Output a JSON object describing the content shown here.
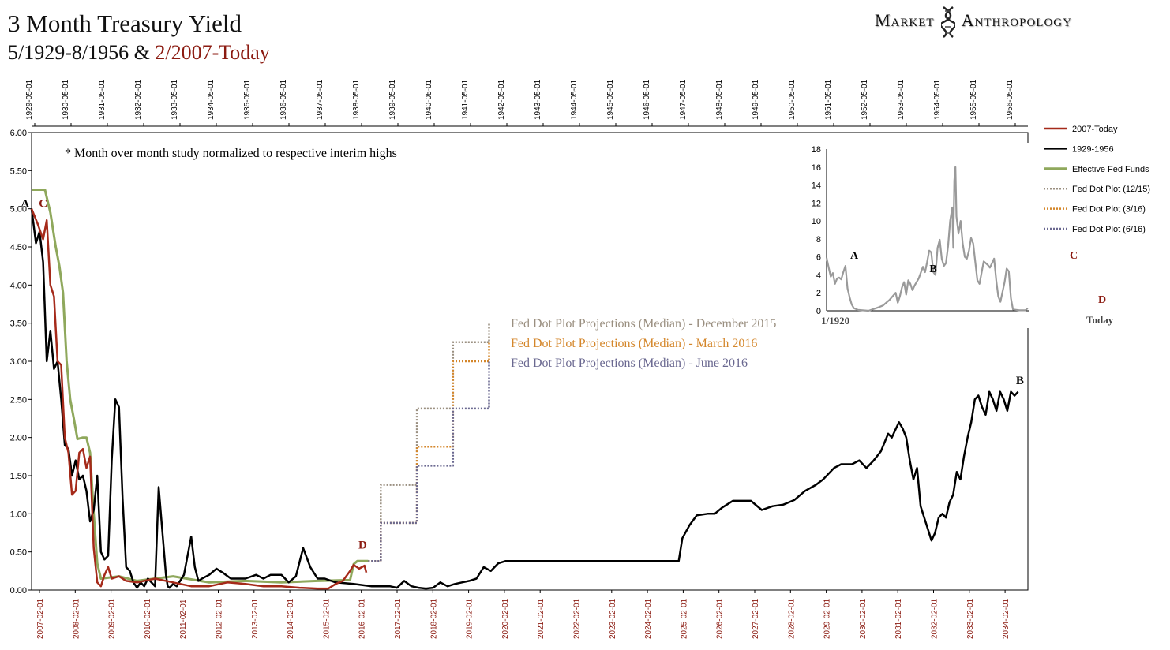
{
  "title": "3 Month Treasury Yield",
  "subtitle_part1": "5/1929-8/1956 &",
  "subtitle_part2": "2/2007-Today",
  "logo_left": "Market",
  "logo_right": "Anthropology",
  "colors": {
    "s2007": "#a52a1a",
    "s1929": "#000000",
    "fedfunds": "#8fa85c",
    "dot1215": "#9a8f80",
    "dot316": "#d4862a",
    "dot616": "#6a6890",
    "inset": "#9a9a9a"
  },
  "chart_data": {
    "type": "line",
    "title": "3 Month Treasury Yield",
    "note": "* Month over month study normalized to respective interim highs",
    "ylim": [
      0,
      6
    ],
    "y_ticks": [
      "0.00",
      "0.50",
      "1.00",
      "1.50",
      "2.00",
      "2.50",
      "3.00",
      "3.50",
      "4.00",
      "4.50",
      "5.00",
      "5.50",
      "6.00"
    ],
    "x_bottom_ticks": [
      "2007-02-01",
      "2008-02-01",
      "2009-02-01",
      "2010-02-01",
      "2011-02-01",
      "2012-02-01",
      "2013-02-01",
      "2014-02-01",
      "2015-02-01",
      "2016-02-01",
      "2017-02-01",
      "2018-02-01",
      "2019-02-01",
      "2020-02-01",
      "2021-02-01",
      "2022-02-01",
      "2023-02-01",
      "2024-02-01",
      "2025-02-01",
      "2026-02-01",
      "2027-02-01",
      "2028-02-01",
      "2029-02-01",
      "2030-02-01",
      "2031-02-01",
      "2032-02-01",
      "2033-02-01",
      "2034-02-01"
    ],
    "x_top_ticks": [
      "1929-05-01",
      "1930-05-01",
      "1931-05-01",
      "1932-05-01",
      "1933-05-01",
      "1934-05-01",
      "1935-05-01",
      "1936-05-01",
      "1937-05-01",
      "1938-05-01",
      "1939-05-01",
      "1940-05-01",
      "1941-05-01",
      "1942-05-01",
      "1943-05-01",
      "1944-05-01",
      "1945-05-01",
      "1946-05-01",
      "1947-05-01",
      "1948-05-01",
      "1949-05-01",
      "1950-05-01",
      "1951-05-01",
      "1952-05-01",
      "1953-05-01",
      "1954-05-01",
      "1955-05-01",
      "1956-05-01"
    ],
    "legend": [
      "2007-Today",
      "1929-1956",
      "Effective Fed Funds",
      "Fed Dot Plot (12/15)",
      "Fed Dot Plot (3/16)",
      "Fed Dot Plot (6/16)"
    ],
    "legend_position": "top-right",
    "series": [
      {
        "name": "2007-Today",
        "x": [
          2007.08,
          2007.25,
          2007.4,
          2007.5,
          2007.6,
          2007.7,
          2007.8,
          2007.9,
          2008.0,
          2008.1,
          2008.2,
          2008.3,
          2008.4,
          2008.5,
          2008.6,
          2008.7,
          2008.8,
          2008.9,
          2009.0,
          2009.1,
          2009.2,
          2009.3,
          2009.5,
          2009.7,
          2010.0,
          2010.5,
          2011.0,
          2011.5,
          2012.0,
          2012.5,
          2013.0,
          2013.5,
          2014.0,
          2014.5,
          2015.0,
          2015.3,
          2015.5,
          2015.7,
          2015.9,
          2016.0,
          2016.15,
          2016.3,
          2016.35
        ],
        "y": [
          5.0,
          4.8,
          4.6,
          4.85,
          4.0,
          3.85,
          3.0,
          2.95,
          2.0,
          1.8,
          1.25,
          1.3,
          1.8,
          1.85,
          1.6,
          1.75,
          0.55,
          0.1,
          0.05,
          0.2,
          0.3,
          0.15,
          0.18,
          0.12,
          0.1,
          0.15,
          0.1,
          0.05,
          0.05,
          0.1,
          0.08,
          0.05,
          0.05,
          0.03,
          0.02,
          0.02,
          0.08,
          0.12,
          0.25,
          0.33,
          0.28,
          0.32,
          0.23
        ]
      },
      {
        "name": "1929-1956",
        "x": [
          2007.08,
          2007.2,
          2007.3,
          2007.4,
          2007.5,
          2007.6,
          2007.7,
          2007.8,
          2007.9,
          2008.0,
          2008.1,
          2008.2,
          2008.3,
          2008.4,
          2008.5,
          2008.6,
          2008.7,
          2008.8,
          2008.9,
          2009.0,
          2009.1,
          2009.2,
          2009.3,
          2009.4,
          2009.5,
          2009.6,
          2009.7,
          2009.8,
          2009.9,
          2010.0,
          2010.1,
          2010.2,
          2010.3,
          2010.5,
          2010.6,
          2010.8,
          2010.85,
          2010.9,
          2011.0,
          2011.1,
          2011.3,
          2011.5,
          2011.6,
          2011.7,
          2011.8,
          2012.0,
          2012.2,
          2012.4,
          2012.6,
          2013.0,
          2013.3,
          2013.5,
          2013.7,
          2014.0,
          2014.2,
          2014.4,
          2014.6,
          2014.8,
          2015.0,
          2015.2,
          2015.5,
          2016.0,
          2016.5,
          2017.0,
          2017.2,
          2017.4,
          2017.6,
          2017.8,
          2018.0,
          2018.2,
          2018.4,
          2018.6,
          2018.8,
          2019.0,
          2019.2,
          2019.4,
          2019.6,
          2019.8,
          2020.0,
          2020.2,
          2020.5,
          2021.0,
          2022.0,
          2023.0,
          2024.0,
          2025.0,
          2025.1,
          2025.3,
          2025.5,
          2025.8,
          2026.0,
          2026.2,
          2026.5,
          2026.8,
          2027.0,
          2027.3,
          2027.6,
          2027.9,
          2028.2,
          2028.5,
          2028.8,
          2029.0,
          2029.3,
          2029.5,
          2029.8,
          2030.0,
          2030.2,
          2030.4,
          2030.6,
          2030.8,
          2030.9,
          2031.0,
          2031.1,
          2031.2,
          2031.3,
          2031.4,
          2031.5,
          2031.6,
          2031.7,
          2031.8,
          2031.9,
          2032.0,
          2032.1,
          2032.2,
          2032.3,
          2032.4,
          2032.5,
          2032.6,
          2032.7,
          2032.8,
          2032.9,
          2033.0,
          2033.1,
          2033.2,
          2033.3,
          2033.4,
          2033.5,
          2033.6,
          2033.7,
          2033.8,
          2033.9,
          2034.0,
          2034.1,
          2034.2,
          2034.3,
          2034.4
        ],
        "y": [
          5.0,
          4.55,
          4.7,
          4.3,
          3.0,
          3.4,
          2.9,
          3.0,
          2.5,
          1.9,
          1.85,
          1.5,
          1.7,
          1.45,
          1.5,
          1.3,
          0.9,
          1.05,
          1.5,
          0.5,
          0.4,
          0.45,
          1.7,
          2.5,
          2.4,
          1.2,
          0.3,
          0.25,
          0.1,
          0.03,
          0.1,
          0.05,
          0.15,
          0.05,
          1.35,
          0.2,
          0.05,
          0.03,
          0.08,
          0.05,
          0.2,
          0.7,
          0.3,
          0.12,
          0.15,
          0.2,
          0.28,
          0.22,
          0.15,
          0.15,
          0.2,
          0.15,
          0.2,
          0.2,
          0.1,
          0.18,
          0.55,
          0.3,
          0.15,
          0.15,
          0.1,
          0.08,
          0.05,
          0.05,
          0.03,
          0.12,
          0.05,
          0.03,
          0.02,
          0.03,
          0.1,
          0.05,
          0.08,
          0.1,
          0.12,
          0.15,
          0.3,
          0.25,
          0.35,
          0.38,
          0.38,
          0.38,
          0.38,
          0.38,
          0.38,
          0.38,
          0.68,
          0.85,
          0.98,
          1.0,
          1.0,
          1.08,
          1.17,
          1.17,
          1.17,
          1.05,
          1.1,
          1.12,
          1.18,
          1.3,
          1.38,
          1.45,
          1.6,
          1.65,
          1.65,
          1.7,
          1.6,
          1.7,
          1.82,
          2.05,
          2.0,
          2.1,
          2.2,
          2.12,
          2.0,
          1.7,
          1.45,
          1.6,
          1.1,
          0.95,
          0.8,
          0.65,
          0.75,
          0.95,
          1.0,
          0.95,
          1.15,
          1.25,
          1.55,
          1.45,
          1.75,
          2.0,
          2.2,
          2.5,
          2.55,
          2.4,
          2.3,
          2.6,
          2.5,
          2.35,
          2.6,
          2.5,
          2.35,
          2.6,
          2.55,
          2.6
        ]
      },
      {
        "name": "Effective Fed Funds",
        "x": [
          2007.08,
          2007.3,
          2007.45,
          2007.6,
          2007.75,
          2007.85,
          2007.95,
          2008.05,
          2008.15,
          2008.25,
          2008.35,
          2008.5,
          2008.6,
          2008.7,
          2008.8,
          2008.9,
          2009.0,
          2009.5,
          2010.0,
          2011.0,
          2012.0,
          2013.0,
          2014.0,
          2015.0,
          2015.9,
          2016.0,
          2016.1,
          2016.4
        ],
        "y": [
          5.25,
          5.25,
          5.25,
          4.95,
          4.5,
          4.25,
          3.9,
          3.0,
          2.5,
          2.25,
          1.98,
          2.0,
          2.0,
          1.8,
          1.0,
          0.35,
          0.15,
          0.18,
          0.12,
          0.18,
          0.1,
          0.12,
          0.1,
          0.12,
          0.13,
          0.34,
          0.38,
          0.38
        ]
      },
      {
        "name": "Fed Dot Plot (12/15)",
        "x": [
          2016.4,
          2016.75,
          2016.75,
          2017.75,
          2017.75,
          2018.75,
          2018.75,
          2019.75,
          2019.75
        ],
        "y": [
          0.38,
          0.38,
          1.38,
          1.38,
          2.38,
          2.38,
          3.25,
          3.25,
          3.5
        ]
      },
      {
        "name": "Fed Dot Plot (3/16)",
        "x": [
          2016.4,
          2016.75,
          2016.75,
          2017.75,
          2017.75,
          2018.75,
          2018.75,
          2019.75,
          2019.75
        ],
        "y": [
          0.38,
          0.38,
          0.88,
          0.88,
          1.88,
          1.88,
          3.0,
          3.0,
          3.25
        ]
      },
      {
        "name": "Fed Dot Plot (6/16)",
        "x": [
          2016.4,
          2016.75,
          2016.75,
          2017.75,
          2017.75,
          2018.75,
          2018.75,
          2019.75,
          2019.75
        ],
        "y": [
          0.38,
          0.38,
          0.88,
          0.88,
          1.63,
          1.63,
          2.38,
          2.38,
          3.0
        ]
      }
    ],
    "projection_labels": [
      "Fed Dot Plot Projections (Median) - December 2015",
      "Fed Dot Plot Projections (Median) - March 2016",
      "Fed Dot Plot Projections (Median) - June 2016"
    ],
    "annotations": [
      {
        "text": "A",
        "x": 2006.9,
        "y": 5.0,
        "color": "#000000"
      },
      {
        "text": "C",
        "x": 2007.4,
        "y": 5.0,
        "color": "#8b1a10"
      },
      {
        "text": "D",
        "x": 2016.25,
        "y": 0.52,
        "color": "#8b1a10"
      },
      {
        "text": "B",
        "x": 2034.45,
        "y": 2.68,
        "color": "#000000"
      }
    ],
    "inset": {
      "type": "line",
      "ylim": [
        0,
        18
      ],
      "y_ticks": [
        "0",
        "2",
        "4",
        "6",
        "8",
        "10",
        "12",
        "14",
        "16",
        "18"
      ],
      "x_labels": [
        "1/1920",
        "Today"
      ],
      "annotations": [
        {
          "text": "A",
          "color": "#000000"
        },
        {
          "text": "B",
          "color": "#000000"
        },
        {
          "text": "C",
          "color": "#8b1a10"
        },
        {
          "text": "D",
          "color": "#8b1a10"
        }
      ],
      "series": [
        {
          "name": "3 Month Treasury Yield",
          "x": [
            1920,
            1921,
            1922,
            1923,
            1924,
            1925,
            1926,
            1927,
            1928,
            1929,
            1930,
            1931,
            1932,
            1933,
            1935,
            1940,
            1945,
            1947,
            1950,
            1953,
            1954,
            1955,
            1956,
            1957,
            1958,
            1959,
            1960,
            1961,
            1962,
            1964,
            1966,
            1967,
            1968,
            1969,
            1970,
            1971,
            1972,
            1973,
            1974,
            1975,
            1976,
            1977,
            1978,
            1979,
            1980,
            1980.5,
            1981,
            1981.5,
            1982,
            1983,
            1984,
            1985,
            1986,
            1987,
            1988,
            1989,
            1990,
            1991,
            1992,
            1993,
            1995,
            1997,
            1998,
            2000,
            2001,
            2002,
            2003,
            2005,
            2006,
            2007,
            2008,
            2009,
            2012,
            2015,
            2016
          ],
          "y": [
            5.9,
            4.8,
            3.8,
            4.2,
            3.0,
            3.6,
            3.7,
            3.5,
            4.3,
            5.0,
            2.5,
            1.5,
            0.7,
            0.3,
            0.1,
            0.0,
            0.4,
            0.6,
            1.2,
            2.0,
            0.9,
            1.6,
            2.6,
            3.2,
            1.8,
            3.4,
            3.0,
            2.3,
            2.8,
            3.6,
            4.9,
            4.3,
            5.4,
            6.7,
            6.5,
            4.3,
            4.0,
            7.0,
            7.9,
            5.8,
            5.0,
            5.3,
            7.2,
            10.0,
            11.5,
            7.0,
            14.5,
            16.0,
            10.5,
            8.6,
            10.0,
            7.5,
            6.0,
            5.8,
            6.7,
            8.1,
            7.5,
            5.4,
            3.4,
            3.0,
            5.5,
            5.1,
            4.8,
            5.8,
            3.4,
            1.6,
            1.0,
            3.2,
            4.7,
            4.4,
            1.4,
            0.15,
            0.05,
            0.05,
            0.3
          ]
        }
      ]
    }
  }
}
